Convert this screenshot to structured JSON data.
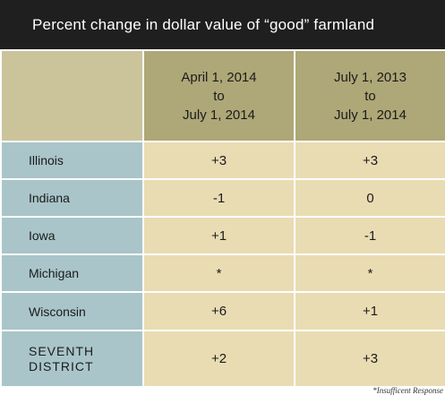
{
  "title": "Percent change in dollar value of “good” farmland",
  "columns": [
    "April 1, 2014\nto\nJuly 1, 2014",
    "July 1, 2013\nto\nJuly 1, 2014"
  ],
  "rows": [
    {
      "label": "Illinois",
      "values": [
        "+3",
        "+3"
      ]
    },
    {
      "label": "Indiana",
      "values": [
        "-1",
        "0"
      ]
    },
    {
      "label": "Iowa",
      "values": [
        "+1",
        "-1"
      ]
    },
    {
      "label": "Michigan",
      "values": [
        "*",
        "*"
      ]
    },
    {
      "label": "Wisconsin",
      "values": [
        "+6",
        "+1"
      ]
    },
    {
      "label": "SEVENTH\nDISTRICT",
      "values": [
        "+2",
        "+3"
      ]
    }
  ],
  "footnote": "*Insufficent Response",
  "colors": {
    "title_bg": "#1f1f1f",
    "header_blank_bg": "#cbc49a",
    "header_col_bg": "#aea777",
    "label_bg": "#a9c5c9",
    "cell_bg": "#e9dcb3"
  }
}
